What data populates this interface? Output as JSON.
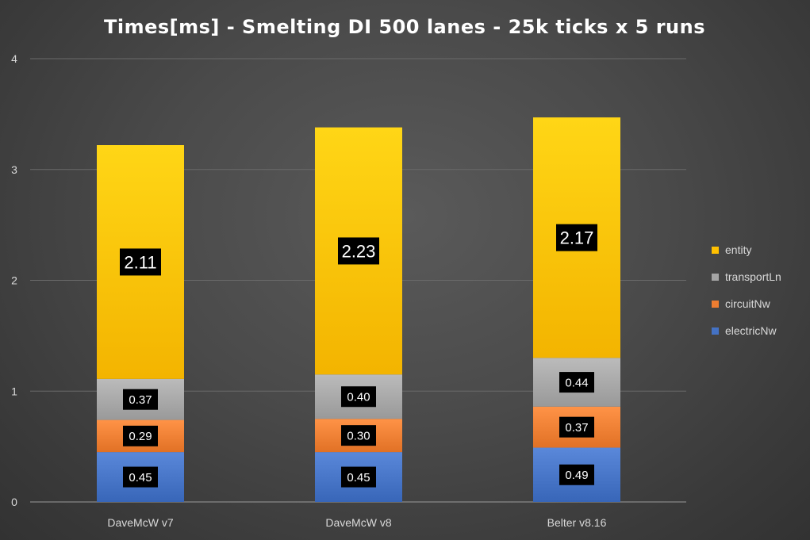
{
  "chart_data": {
    "type": "bar",
    "stacked": true,
    "title": "Times[ms] - Smelting DI 500 lanes - 25k ticks x 5 runs",
    "categories": [
      "DaveMcW v7",
      "DaveMcW v8",
      "Belter v8.16"
    ],
    "series": [
      {
        "name": "electricNw",
        "values": [
          0.45,
          0.45,
          0.49
        ],
        "color": "#4472c4",
        "labels": [
          "0.45",
          "0.45",
          "0.49"
        ]
      },
      {
        "name": "circuitNw",
        "values": [
          0.29,
          0.3,
          0.37
        ],
        "color": "#ed7d31",
        "labels": [
          "0.29",
          "0.30",
          "0.37"
        ]
      },
      {
        "name": "transportLn",
        "values": [
          0.37,
          0.4,
          0.44
        ],
        "color": "#a5a5a5",
        "labels": [
          "0.37",
          "0.40",
          "0.44"
        ]
      },
      {
        "name": "entity",
        "values": [
          2.11,
          2.23,
          2.17
        ],
        "color": "#ffc000",
        "labels": [
          "2.11",
          "2.23",
          "2.17"
        ]
      }
    ],
    "legend_order": [
      "entity",
      "transportLn",
      "circuitNw",
      "electricNw"
    ],
    "yticks": [
      "0",
      "1",
      "2",
      "3",
      "4"
    ],
    "ylim": [
      0,
      4
    ],
    "grid": true,
    "legend_position": "right",
    "xlabel": "",
    "ylabel": ""
  }
}
